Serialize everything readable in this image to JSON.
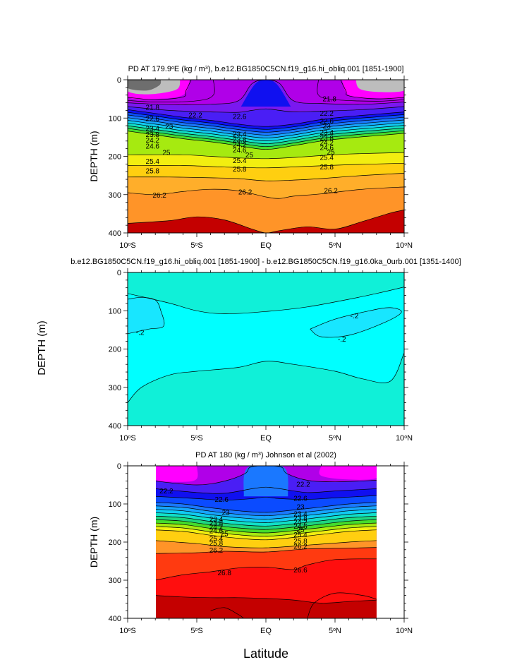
{
  "figure": {
    "xlabel": "Latitude",
    "ylabel": "DEPTH (m)"
  },
  "colors": {
    "gray_dark": "#6e6e6e",
    "gray_light": "#bdbdbd",
    "magenta": "#ff00ff",
    "purple": "#b000e8",
    "violet": "#7a18f0",
    "indigo": "#4a1ef5",
    "blue_deep": "#1010f0",
    "blue": "#0b4bff",
    "azure": "#1a78ff",
    "sky": "#16a5ff",
    "cyan_blue": "#10cbf2",
    "teal": "#10e0c8",
    "green": "#1ed680",
    "lime": "#44dc2c",
    "yellow_green": "#a6ea10",
    "yellow": "#f2ee10",
    "gold": "#ffcf10",
    "orange_light": "#ffae2a",
    "orange": "#ff9428",
    "orange_dark": "#ff7a1e",
    "red_orange": "#ff5a14",
    "red_light": "#ff3a10",
    "red": "#ff0e0e",
    "red_dark": "#e00000",
    "maroon": "#c40000",
    "diff_bright": "#18e6ff",
    "diff_mid": "#00ffff",
    "diff_teal": "#10f0d8"
  },
  "chart_data": [
    {
      "type": "filled-contour",
      "title_parts": [
        "PD AT 179.9",
        "o",
        "E (kg / m",
        "3",
        "), b.e12.BG1850C5CN.f19_g16.hi_obliq.001 [1851-1900]"
      ],
      "xticks": [
        {
          "value": -10,
          "label": [
            "10",
            "o",
            "S"
          ]
        },
        {
          "value": -5,
          "label": [
            "5",
            "o",
            "S"
          ]
        },
        {
          "value": 0,
          "label": [
            "EQ",
            "",
            ""
          ]
        },
        {
          "value": 5,
          "label": [
            "5",
            "o",
            "N"
          ]
        },
        {
          "value": 10,
          "label": [
            "10",
            "o",
            "N"
          ]
        }
      ],
      "yticks": [
        0,
        100,
        200,
        300,
        400
      ],
      "xlim": [
        -10,
        10
      ],
      "ylim": [
        400,
        0
      ],
      "levels": [
        21.8,
        22.2,
        22.6,
        23,
        23.4,
        23.8,
        24.2,
        24.6,
        25,
        25.4,
        25.8,
        26.2
      ],
      "contour_labels": [
        {
          "text": "21.8",
          "lat": -8.2,
          "depth": 72
        },
        {
          "text": "21.8",
          "lat": 4.6,
          "depth": 50
        },
        {
          "text": "22.6",
          "lat": -8.2,
          "depth": 101
        },
        {
          "text": "22.2",
          "lat": -5.1,
          "depth": 92
        },
        {
          "text": "22.6",
          "lat": -1.9,
          "depth": 96
        },
        {
          "text": "22.2",
          "lat": 4.4,
          "depth": 88
        },
        {
          "text": "22.6",
          "lat": 4.4,
          "depth": 108
        },
        {
          "text": "23",
          "lat": -7.0,
          "depth": 122
        },
        {
          "text": "23.4",
          "lat": -8.2,
          "depth": 127
        },
        {
          "text": "23.8",
          "lat": -8.2,
          "depth": 143
        },
        {
          "text": "24.2",
          "lat": -8.2,
          "depth": 158
        },
        {
          "text": "24.6",
          "lat": -8.2,
          "depth": 173
        },
        {
          "text": "23",
          "lat": 4.4,
          "depth": 121
        },
        {
          "text": "23.4",
          "lat": 4.4,
          "depth": 137
        },
        {
          "text": "23.8",
          "lat": 4.4,
          "depth": 152
        },
        {
          "text": "24.2",
          "lat": 4.4,
          "depth": 164
        },
        {
          "text": "24.6",
          "lat": 4.4,
          "depth": 177
        },
        {
          "text": "23.4",
          "lat": -1.9,
          "depth": 142
        },
        {
          "text": "23.8",
          "lat": -1.9,
          "depth": 157
        },
        {
          "text": "24.2",
          "lat": -1.9,
          "depth": 170
        },
        {
          "text": "24.6",
          "lat": -1.9,
          "depth": 183
        },
        {
          "text": "25",
          "lat": -7.2,
          "depth": 190
        },
        {
          "text": "25",
          "lat": -1.2,
          "depth": 196
        },
        {
          "text": "25",
          "lat": 4.7,
          "depth": 189
        },
        {
          "text": "25.4",
          "lat": -8.2,
          "depth": 213
        },
        {
          "text": "25.4",
          "lat": -1.9,
          "depth": 211
        },
        {
          "text": "25.4",
          "lat": 4.4,
          "depth": 203
        },
        {
          "text": "25.8",
          "lat": -8.2,
          "depth": 238
        },
        {
          "text": "25.8",
          "lat": -1.9,
          "depth": 233
        },
        {
          "text": "25.8",
          "lat": 4.4,
          "depth": 228
        },
        {
          "text": "26.2",
          "lat": -7.7,
          "depth": 301
        },
        {
          "text": "26.2",
          "lat": -1.5,
          "depth": 293
        },
        {
          "text": "26.2",
          "lat": 4.7,
          "depth": 289
        }
      ]
    },
    {
      "type": "filled-contour",
      "title_parts": [
        "b.e12.BG1850C5CN.f19_g16.hi_obliq.001 [1851-1900] - b.e12.BG1850C5CN.f19_g16.0ka_0urb.001 [1351-1400]"
      ],
      "xticks": [
        {
          "value": -10,
          "label": [
            "10",
            "o",
            "S"
          ]
        },
        {
          "value": -5,
          "label": [
            "5",
            "o",
            "S"
          ]
        },
        {
          "value": 0,
          "label": [
            "EQ",
            "",
            ""
          ]
        },
        {
          "value": 5,
          "label": [
            "5",
            "o",
            "N"
          ]
        },
        {
          "value": 10,
          "label": [
            "10",
            "o",
            "N"
          ]
        }
      ],
      "yticks": [
        0,
        100,
        200,
        300,
        400
      ],
      "xlim": [
        -10,
        10
      ],
      "ylim": [
        400,
        0
      ],
      "contour_labels": [
        {
          "text": "-.2",
          "lat": -9.1,
          "depth": 157
        },
        {
          "text": "-.2",
          "lat": 6.4,
          "depth": 113
        },
        {
          "text": "-.2",
          "lat": 5.5,
          "depth": 174
        }
      ]
    },
    {
      "type": "filled-contour",
      "title_parts": [
        "PD AT 180 (kg / m",
        "3",
        ") Johnson et al (2002)"
      ],
      "xticks": [
        {
          "value": -10,
          "label": [
            "10",
            "o",
            "S"
          ]
        },
        {
          "value": -5,
          "label": [
            "5",
            "o",
            "S"
          ]
        },
        {
          "value": 0,
          "label": [
            "EQ",
            "",
            ""
          ]
        },
        {
          "value": 5,
          "label": [
            "5",
            "o",
            "N"
          ]
        },
        {
          "value": 10,
          "label": [
            "10",
            "o",
            "N"
          ]
        }
      ],
      "yticks": [
        0,
        100,
        200,
        300,
        400
      ],
      "xlim": [
        -10,
        10
      ],
      "ylim": [
        400,
        0
      ],
      "data_lat_range": [
        -8,
        8
      ],
      "contour_labels": [
        {
          "text": "22.2",
          "lat": -7.2,
          "depth": 66
        },
        {
          "text": "22.2",
          "lat": 2.7,
          "depth": 48
        },
        {
          "text": "22.6",
          "lat": -3.2,
          "depth": 88
        },
        {
          "text": "22.6",
          "lat": 2.5,
          "depth": 85
        },
        {
          "text": "23",
          "lat": -2.9,
          "depth": 122
        },
        {
          "text": "23",
          "lat": 2.5,
          "depth": 107
        },
        {
          "text": "23.4",
          "lat": -3.6,
          "depth": 140
        },
        {
          "text": "23.8",
          "lat": -3.6,
          "depth": 150
        },
        {
          "text": "24.2",
          "lat": -3.6,
          "depth": 160
        },
        {
          "text": "24.6",
          "lat": -3.6,
          "depth": 170
        },
        {
          "text": "25",
          "lat": -3.0,
          "depth": 178
        },
        {
          "text": "23.4",
          "lat": 2.5,
          "depth": 126
        },
        {
          "text": "23.8",
          "lat": 2.5,
          "depth": 137
        },
        {
          "text": "24.2",
          "lat": 2.5,
          "depth": 147
        },
        {
          "text": "24.6",
          "lat": 2.5,
          "depth": 158
        },
        {
          "text": "25",
          "lat": 2.5,
          "depth": 168
        },
        {
          "text": "25.4",
          "lat": -3.6,
          "depth": 191
        },
        {
          "text": "25.8",
          "lat": -3.6,
          "depth": 203
        },
        {
          "text": "26.2",
          "lat": -3.6,
          "depth": 221
        },
        {
          "text": "25.4",
          "lat": 2.5,
          "depth": 181
        },
        {
          "text": "25.8",
          "lat": 2.5,
          "depth": 197
        },
        {
          "text": "26.2",
          "lat": 2.5,
          "depth": 211
        },
        {
          "text": "26.8",
          "lat": -3.0,
          "depth": 281
        },
        {
          "text": "26.6",
          "lat": 2.5,
          "depth": 273
        }
      ]
    }
  ]
}
